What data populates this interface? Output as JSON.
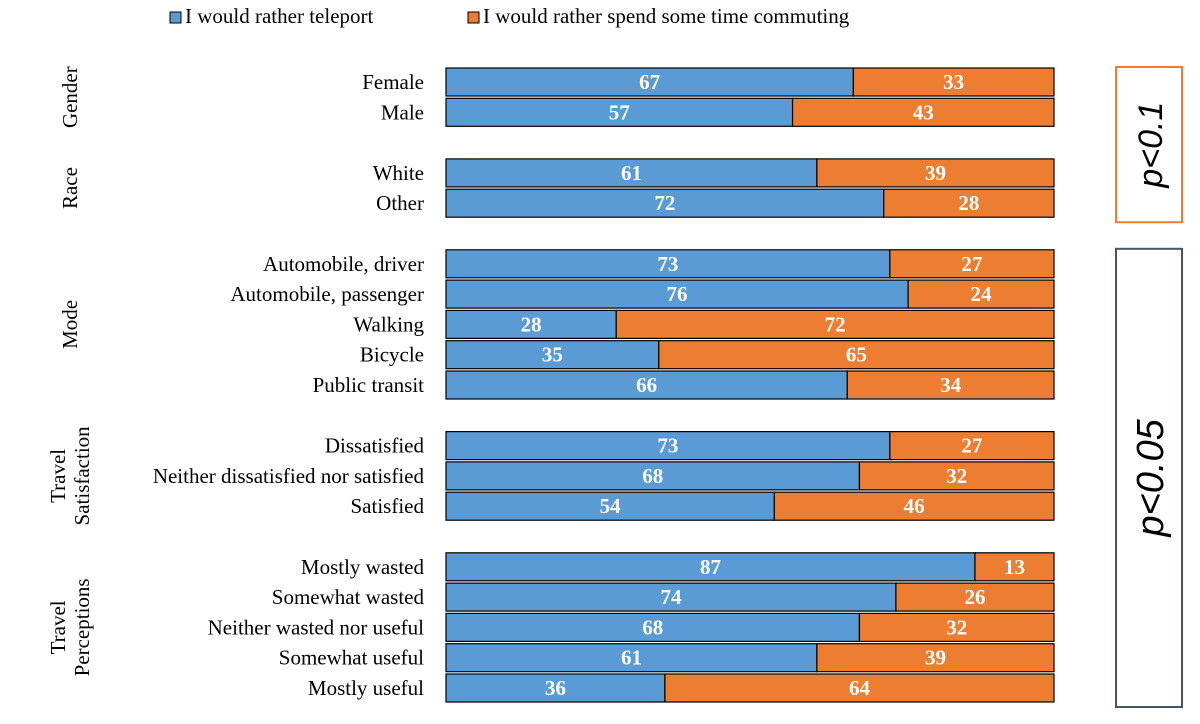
{
  "chart_data": {
    "type": "bar",
    "orientation": "horizontal",
    "stacked": true,
    "xlim": [
      0,
      100
    ],
    "legend_position": "top",
    "series": [
      {
        "name": "I would rather teleport",
        "color": "#5B9BD5"
      },
      {
        "name": "I would rather spend some time commuting",
        "color": "#ED7D31"
      }
    ],
    "groups": [
      {
        "label": "Gender",
        "label_lines": [
          "Gender"
        ],
        "rows": [
          {
            "label": "Female",
            "values": [
              67,
              33
            ]
          },
          {
            "label": "Male",
            "values": [
              57,
              43
            ]
          }
        ]
      },
      {
        "label": "Race",
        "label_lines": [
          "Race"
        ],
        "rows": [
          {
            "label": "White",
            "values": [
              61,
              39
            ]
          },
          {
            "label": "Other",
            "values": [
              72,
              28
            ]
          }
        ]
      },
      {
        "label": "Mode",
        "label_lines": [
          "Mode"
        ],
        "rows": [
          {
            "label": "Automobile, driver",
            "values": [
              73,
              27
            ]
          },
          {
            "label": "Automobile, passenger",
            "values": [
              76,
              24
            ]
          },
          {
            "label": "Walking",
            "values": [
              28,
              72
            ]
          },
          {
            "label": "Bicycle",
            "values": [
              35,
              65
            ]
          },
          {
            "label": "Public transit",
            "values": [
              66,
              34
            ]
          }
        ]
      },
      {
        "label": "Travel Satisfaction",
        "label_lines": [
          "Travel",
          "Satisfaction"
        ],
        "rows": [
          {
            "label": "Dissatisfied",
            "values": [
              73,
              27
            ]
          },
          {
            "label": "Neither dissatisfied nor satisfied",
            "values": [
              68,
              32
            ]
          },
          {
            "label": "Satisfied",
            "values": [
              54,
              46
            ]
          }
        ]
      },
      {
        "label": "Travel Perceptions",
        "label_lines": [
          "Travel",
          "Perceptions"
        ],
        "rows": [
          {
            "label": "Mostly wasted",
            "values": [
              87,
              13
            ]
          },
          {
            "label": "Somewhat wasted",
            "values": [
              74,
              26
            ]
          },
          {
            "label": "Neither wasted nor useful",
            "values": [
              68,
              32
            ]
          },
          {
            "label": "Somewhat useful",
            "values": [
              61,
              39
            ]
          },
          {
            "label": "Mostly useful",
            "values": [
              36,
              64
            ]
          }
        ]
      }
    ],
    "annotations": [
      {
        "text": "p<0.1",
        "spans_groups": [
          "Gender",
          "Race"
        ],
        "border_color": "#ED7D31"
      },
      {
        "text": "p<0.05",
        "spans_groups": [
          "Mode",
          "Travel Satisfaction",
          "Travel Perceptions"
        ],
        "border_color": "#44546A"
      }
    ]
  }
}
